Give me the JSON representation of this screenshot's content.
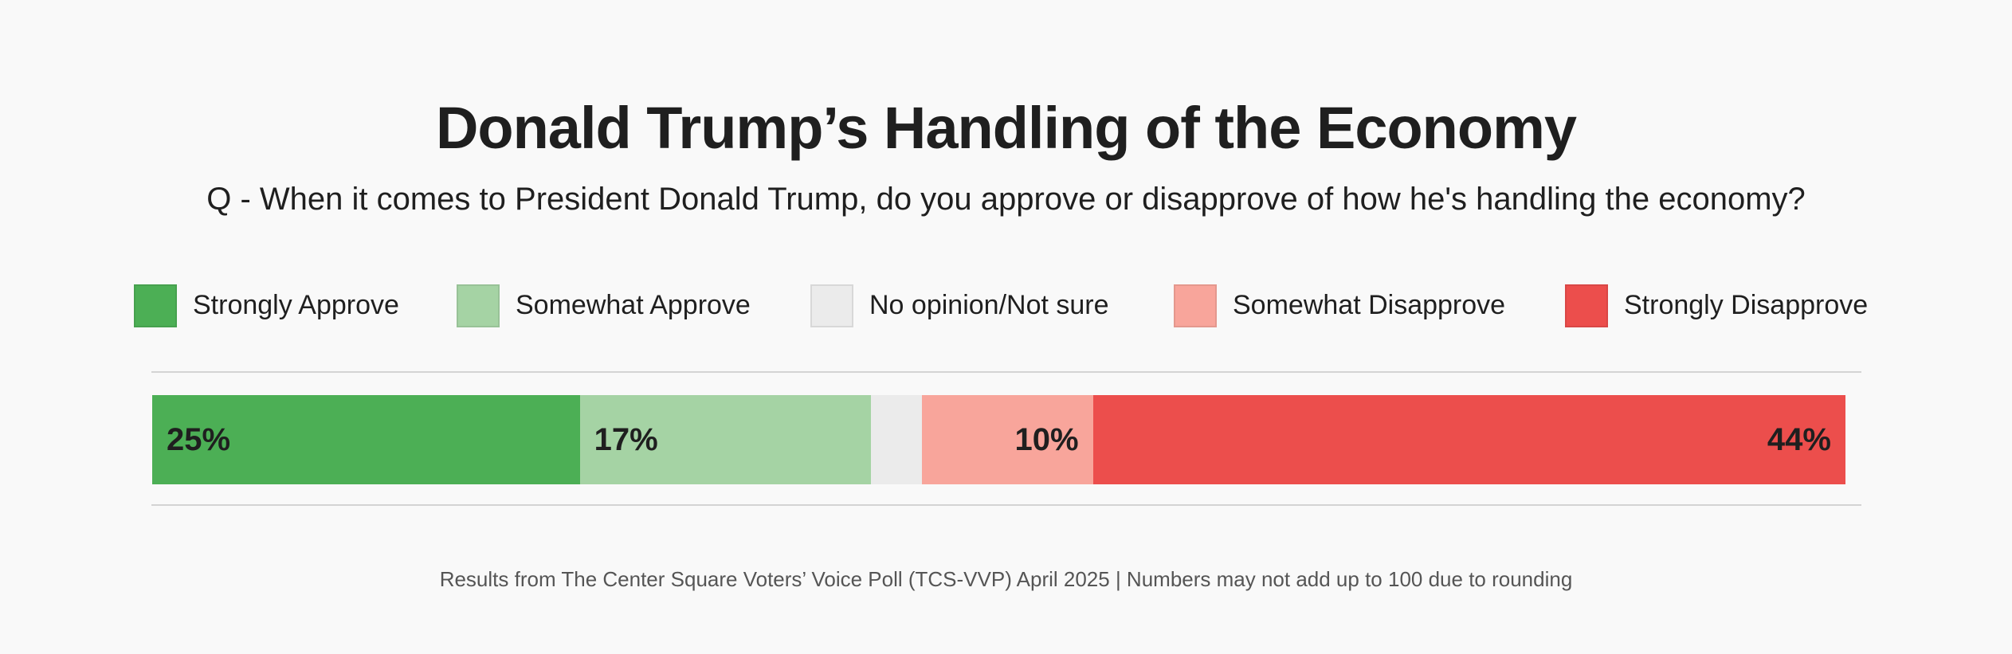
{
  "chart_data": {
    "type": "bar",
    "orientation": "horizontal-stacked",
    "title": "Donald Trump’s Handling of the Economy",
    "subtitle": "Q - When it comes to President Donald Trump, do you approve or disapprove of how he's handling the economy?",
    "legend_position": "top",
    "series": [
      {
        "name": "Strongly Approve",
        "value": 25,
        "label": "25%",
        "color": "#4caf55",
        "align": "left"
      },
      {
        "name": "Somewhat Approve",
        "value": 17,
        "label": "17%",
        "color": "#a5d3a4",
        "align": "left"
      },
      {
        "name": "No opinion/Not sure",
        "value": 3,
        "label": "",
        "color": "#ebebeb",
        "align": "left"
      },
      {
        "name": "Somewhat Disapprove",
        "value": 10,
        "label": "10%",
        "color": "#f8a59b",
        "align": "right"
      },
      {
        "name": "Strongly Disapprove",
        "value": 44,
        "label": "44%",
        "color": "#ec4e4c",
        "align": "right"
      }
    ],
    "xlim": [
      0,
      99
    ],
    "footer": "Results from The Center Square Voters’ Voice Poll (TCS-VVP) April 2025 | Numbers may not add up to 100 due to rounding"
  }
}
